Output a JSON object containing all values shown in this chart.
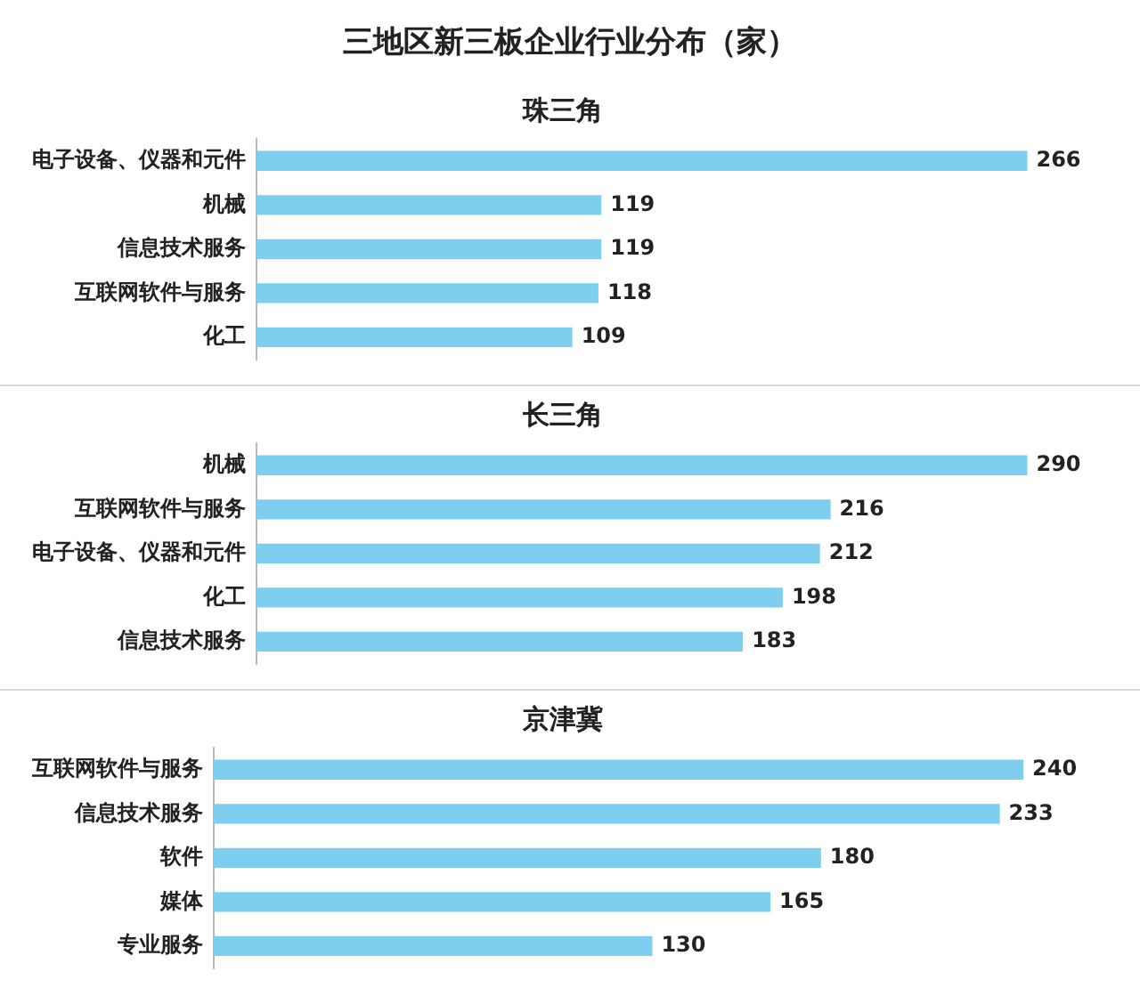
{
  "chart_data": [
    {
      "type": "other",
      "title": "三地区新三板企业行业分布（家）"
    },
    {
      "type": "bar",
      "orientation": "horizontal",
      "title": "珠三角",
      "categories": [
        "电子设备、仪器和元件",
        "机械",
        "信息技术服务",
        "互联网软件与服务",
        "化工"
      ],
      "values": [
        266,
        119,
        119,
        118,
        109
      ],
      "color": "#7ecef0",
      "data_labels": true
    },
    {
      "type": "bar",
      "orientation": "horizontal",
      "title": "长三角",
      "categories": [
        "机械",
        "互联网软件与服务",
        "电子设备、仪器和元件",
        "化工",
        "信息技术服务"
      ],
      "values": [
        290,
        216,
        212,
        198,
        183
      ],
      "color": "#7ecef0",
      "data_labels": true
    },
    {
      "type": "bar",
      "orientation": "horizontal",
      "title": "京津冀",
      "categories": [
        "互联网软件与服务",
        "信息技术服务",
        "软件",
        "媒体",
        "专业服务"
      ],
      "values": [
        240,
        233,
        180,
        165,
        130
      ],
      "color": "#7ecef0",
      "data_labels": true
    }
  ]
}
